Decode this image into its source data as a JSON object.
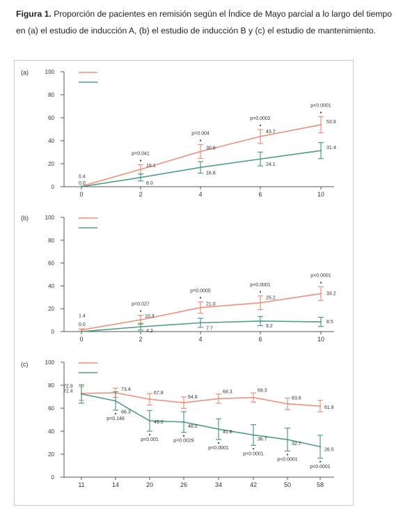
{
  "caption": {
    "label": "Figura 1.",
    "text": "Proporción de pacientes en remisión según el Índice de Mayo parcial a lo largo del tiempo en (a) el estudio de inducción A, (b) el estudio de inducción B y (c) el estudio de mantenimiento."
  },
  "colors": {
    "series_1": "#f0907a",
    "series_2": "#4e9e86",
    "axis": "#555555",
    "text": "#333333"
  },
  "chart_data": [
    {
      "panel_label": "(a)",
      "type": "line",
      "x": [
        0,
        2,
        4,
        6,
        10
      ],
      "x_tick_labels": [
        "0",
        "2",
        "4",
        "6",
        "10"
      ],
      "y_ticks": [
        0,
        20,
        40,
        60,
        80,
        100
      ],
      "ylim": [
        0,
        100
      ],
      "legend": "top-left",
      "series": [
        {
          "values": [
            0.4,
            15.1,
            30.6,
            43.7,
            53.9
          ],
          "labels": [
            "0.4",
            "15.1",
            "30.6",
            "43.7",
            "53.9"
          ],
          "error": [
            0,
            4,
            6,
            6,
            7
          ],
          "color": "#f0907a"
        },
        {
          "values": [
            0.0,
            8.0,
            16.8,
            24.1,
            31.4
          ],
          "labels": [
            "0.0",
            "8.0",
            "16.8",
            "24.1",
            "31.4"
          ],
          "error": [
            0,
            3,
            5,
            6,
            7
          ],
          "color": "#4e9e86"
        }
      ],
      "annotations": [
        {
          "x": 2,
          "y": 15.1,
          "text": "p=0.041"
        },
        {
          "x": 4,
          "y": 30.6,
          "text": "p=0.004"
        },
        {
          "x": 6,
          "y": 43.7,
          "text": "p=0.0002"
        },
        {
          "x": 10,
          "y": 53.9,
          "text": "p<0.0001"
        }
      ]
    },
    {
      "panel_label": "(b)",
      "type": "line",
      "x": [
        0,
        2,
        4,
        6,
        10
      ],
      "x_tick_labels": [
        "0",
        "2",
        "4",
        "6",
        "10"
      ],
      "y_ticks": [
        0,
        20,
        40,
        60,
        80,
        100
      ],
      "ylim": [
        0,
        100
      ],
      "legend": "top-left",
      "series": [
        {
          "values": [
            1.4,
            10.3,
            21.0,
            25.2,
            33.2
          ],
          "labels": [
            "1.4",
            "10.3",
            "21.0",
            "25.2",
            "33.2"
          ],
          "error": [
            1,
            4,
            5,
            6,
            6
          ],
          "color": "#f0907a"
        },
        {
          "values": [
            0.0,
            4.2,
            7.7,
            9.2,
            8.5
          ],
          "labels": [
            "0.0",
            "4.2",
            "7.7",
            "9.2",
            "8.5"
          ],
          "error": [
            0,
            3,
            4,
            4,
            4
          ],
          "color": "#4e9e86"
        }
      ],
      "annotations": [
        {
          "x": 2,
          "y": 10.3,
          "text": "p=0.027"
        },
        {
          "x": 4,
          "y": 21.0,
          "text": "p=0.0005"
        },
        {
          "x": 6,
          "y": 25.2,
          "text": "p<0.0001"
        },
        {
          "x": 10,
          "y": 33.2,
          "text": "p<0.0001"
        }
      ]
    },
    {
      "panel_label": "(c)",
      "type": "line",
      "x": [
        11,
        14,
        20,
        26,
        34,
        42,
        50,
        58
      ],
      "x_tick_labels": [
        "11",
        "14",
        "20",
        "26",
        "34",
        "42",
        "50",
        "58"
      ],
      "y_ticks": [
        0,
        20,
        40,
        60,
        80,
        100
      ],
      "ylim": [
        0,
        100
      ],
      "legend": "top-left",
      "series": [
        {
          "values": [
            72.9,
            73.4,
            67.8,
            64.8,
            68.3,
            69.3,
            63.8,
            61.8
          ],
          "labels": [
            "72.9",
            "73.4",
            "67.8",
            "64.8",
            "68.3",
            "69.3",
            "63.8",
            "61.8"
          ],
          "error": [
            6,
            4,
            5,
            5,
            4,
            4,
            5,
            5
          ],
          "color": "#f0907a"
        },
        {
          "values": [
            72.4,
            66.3,
            49.0,
            48.0,
            41.8,
            36.7,
            32.7,
            26.5
          ],
          "labels": [
            "72.4",
            "66.3",
            "49.0",
            "48.0",
            "41.8",
            "36.7",
            "32.7",
            "26.5"
          ],
          "error": [
            8,
            8,
            9,
            9,
            9,
            9,
            10,
            10
          ],
          "color": "#4e9e86"
        }
      ],
      "annotations": [
        {
          "x": 14,
          "y": 66.3,
          "text": "p=0.148"
        },
        {
          "x": 20,
          "y": 49.0,
          "text": "p=0.001"
        },
        {
          "x": 26,
          "y": 48.0,
          "text": "p=0.0029"
        },
        {
          "x": 34,
          "y": 41.8,
          "text": "p<0.0001"
        },
        {
          "x": 42,
          "y": 36.7,
          "text": "p<0.0001"
        },
        {
          "x": 50,
          "y": 32.7,
          "text": "p<0.0001"
        },
        {
          "x": 58,
          "y": 26.5,
          "text": "p<0.0001"
        }
      ]
    }
  ]
}
